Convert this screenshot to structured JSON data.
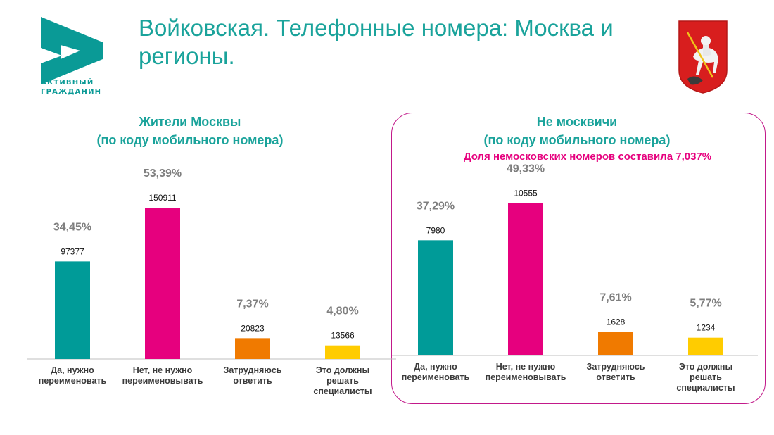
{
  "page": {
    "title": "Войковская. Телефонные номера: Москва и регионы.",
    "logo": {
      "line1": "АКТИВНЫЙ",
      "line2": "ГРАЖДАНИН"
    },
    "colors": {
      "teal": "#009b98",
      "magenta": "#e6007e",
      "orange": "#f07a00",
      "yellow": "#ffcc00",
      "accent_text": "#1aa39b"
    },
    "emblem": "moscow-coat-of-arms-icon"
  },
  "chart_data": [
    {
      "type": "bar",
      "title": "Жители Москвы",
      "subtitle": "(по коду мобильного номера)",
      "categories": [
        [
          "Да, нужно",
          "переименовать"
        ],
        [
          "Нет, не нужно",
          "переименовывать"
        ],
        [
          "Затрудняюсь",
          "ответить"
        ],
        [
          "Это должны",
          "решать",
          "специалисты"
        ]
      ],
      "values": [
        97377,
        150911,
        20823,
        13566
      ],
      "percent_labels": [
        "34,45%",
        "53,39%",
        "7,37%",
        "4,80%"
      ],
      "colors": [
        "#009b98",
        "#e6007e",
        "#f07a00",
        "#ffcc00"
      ],
      "ylim": [
        0,
        170000
      ]
    },
    {
      "type": "bar",
      "title": "Не москвичи",
      "subtitle": "(по коду мобильного номера)",
      "note": "Доля немосковских номеров составила 7,037%",
      "categories": [
        [
          "Да, нужно",
          "переименовать"
        ],
        [
          "Нет, не нужно",
          "переименовывать"
        ],
        [
          "Затрудняюсь",
          "ответить"
        ],
        [
          "Это должны",
          "решать",
          "специалисты"
        ]
      ],
      "values": [
        7980,
        10555,
        1628,
        1234
      ],
      "percent_labels": [
        "37,29%",
        "49,33%",
        "7,61%",
        "5,77%"
      ],
      "colors": [
        "#009b98",
        "#e6007e",
        "#f07a00",
        "#ffcc00"
      ],
      "ylim": [
        0,
        11800
      ]
    }
  ]
}
